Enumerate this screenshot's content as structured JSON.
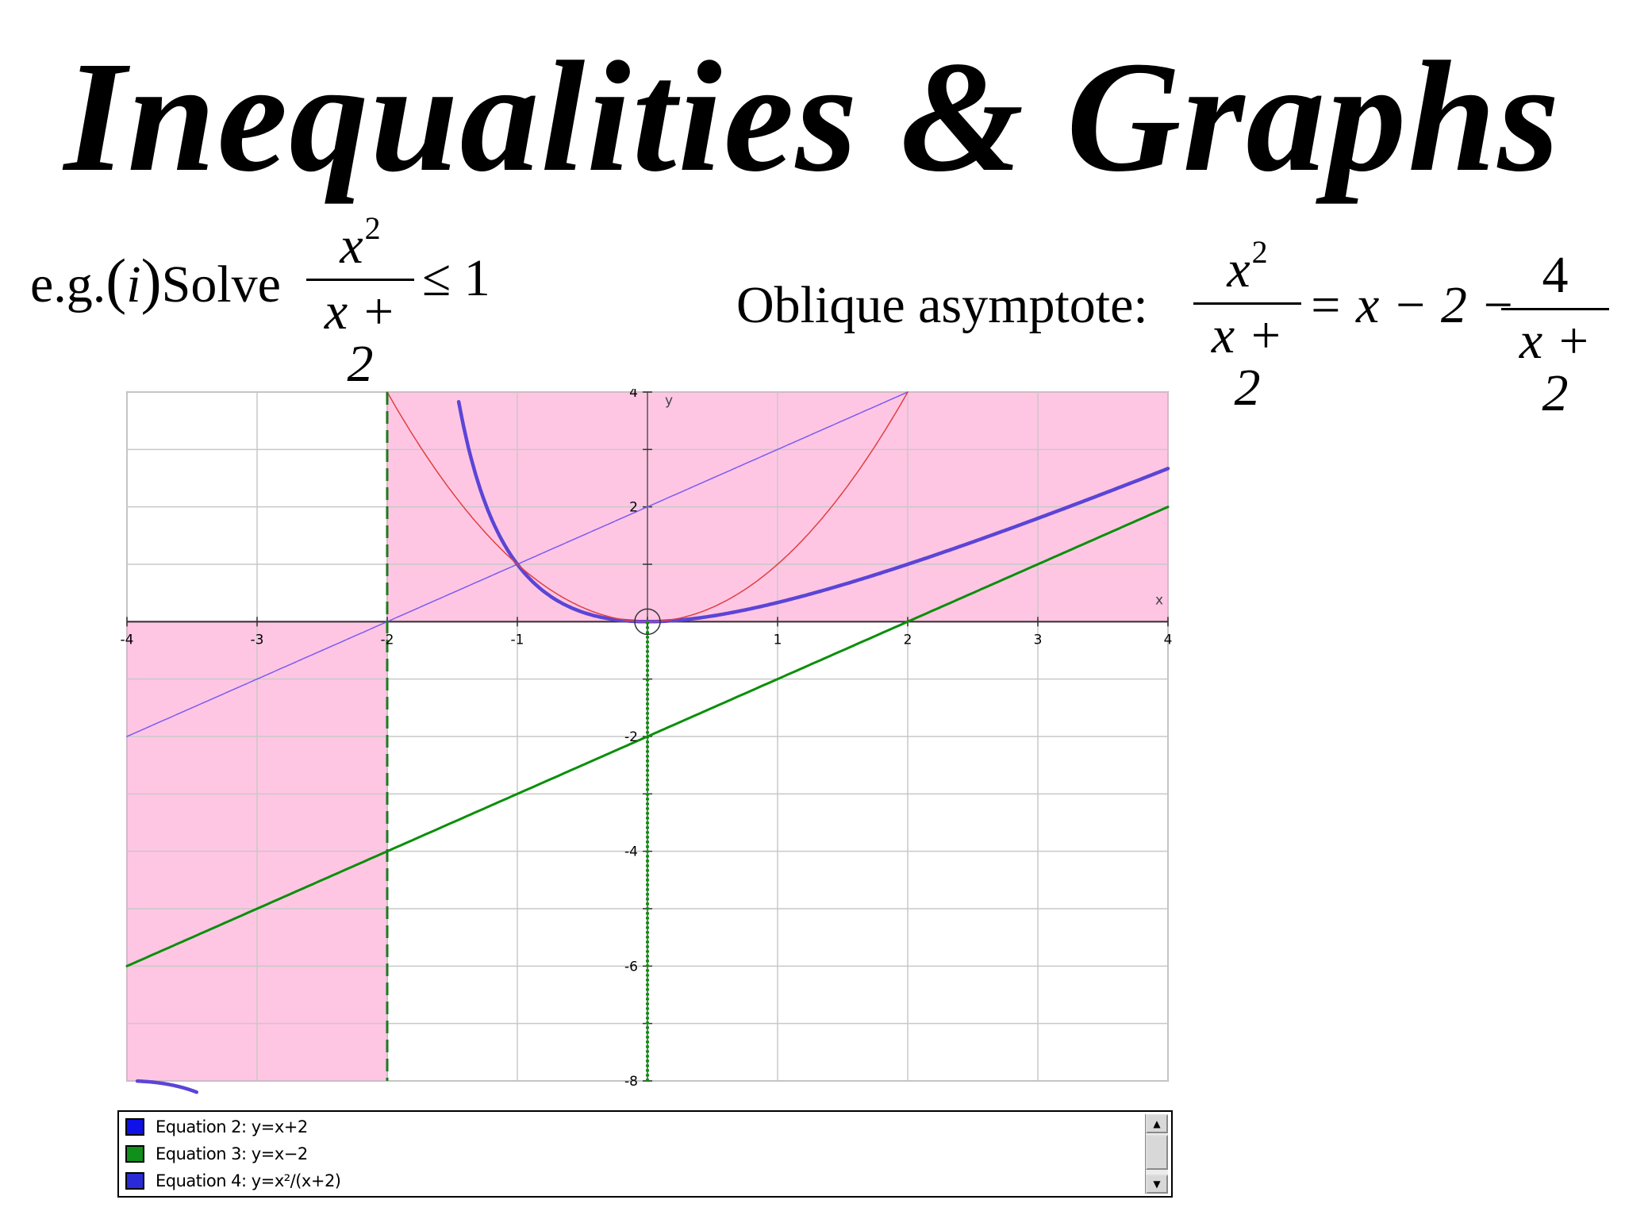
{
  "title": "Inequalities & Graphs",
  "example": {
    "prefix": "e.g.",
    "paren_open": "(",
    "index": "i",
    "paren_close": ")",
    "verb": "Solve",
    "numerator_var": "x",
    "numerator_exp": "2",
    "denominator": "x + 2",
    "relation": "≤ 1"
  },
  "asymptote": {
    "label": "Oblique asymptote:",
    "lhs_num_var": "x",
    "lhs_num_exp": "2",
    "lhs_den": "x + 2",
    "mid": "= x − 2 −",
    "rhs_num": "4",
    "rhs_den": "x + 2"
  },
  "chart_data": {
    "type": "line",
    "xlim": [
      -4,
      4
    ],
    "ylim": [
      -8,
      4
    ],
    "grid": true,
    "x_gridlines": [
      -4,
      -3,
      -2,
      -1,
      0,
      1,
      2,
      3,
      4
    ],
    "y_gridlines": [
      -8,
      -7,
      -6,
      -5,
      -4,
      -3,
      -2,
      -1,
      0,
      1,
      2,
      3,
      4
    ],
    "x_tick_labels": [
      {
        "value": -4,
        "text": "-4"
      },
      {
        "value": -3,
        "text": "-3"
      },
      {
        "value": -2,
        "text": "-2"
      },
      {
        "value": -1,
        "text": "-1"
      },
      {
        "value": 1,
        "text": "1"
      },
      {
        "value": 2,
        "text": "2"
      },
      {
        "value": 3,
        "text": "3"
      },
      {
        "value": 4,
        "text": "4"
      }
    ],
    "y_tick_labels": [
      {
        "value": 4,
        "text": "4"
      },
      {
        "value": 2,
        "text": "2"
      },
      {
        "value": -2,
        "text": "-2"
      },
      {
        "value": -4,
        "text": "-4"
      },
      {
        "value": -6,
        "text": "-6"
      },
      {
        "value": -8,
        "text": "-8"
      }
    ],
    "xlabel": "x",
    "ylabel": "y",
    "shaded_regions": [
      {
        "x": [
          -2,
          4
        ],
        "y": [
          0,
          4
        ]
      },
      {
        "x": [
          -4,
          -2
        ],
        "y": [
          -8,
          0
        ]
      }
    ],
    "series": [
      {
        "name": "Equation 2: y=x+2",
        "expr": "x+2",
        "domain": [
          -4,
          2
        ],
        "color": "#7a5cf0",
        "style": "thin"
      },
      {
        "name": "Equation 3: y=x−2",
        "expr": "x-2",
        "domain": [
          -4,
          4
        ],
        "color": "#0a8f0a",
        "style": "medium"
      },
      {
        "name": "Equation 4: y=x²/(x+2)",
        "expr": "x^2/(x+2)",
        "domain": [
          -3.92,
          -2.35
        ],
        "domain2": [
          -1.6,
          4
        ],
        "color": "#5b45d6",
        "style": "thick"
      },
      {
        "expr": "x^2",
        "domain": [
          -2,
          2
        ],
        "color": "#e04040",
        "style": "thin"
      },
      {
        "expr": "x=-2",
        "color": "#1e7a1e",
        "style": "dashed"
      },
      {
        "expr": "x=0",
        "color": "#0a8f0a",
        "style": "dotted"
      }
    ],
    "marked_point": {
      "x": 0,
      "y": 0
    }
  },
  "legend": {
    "items": [
      {
        "label": "Equation 2: y=x+2",
        "color": "#1010e8"
      },
      {
        "label": "Equation 3: y=x−2",
        "color": "#10901a"
      },
      {
        "label": "Equation 4: y=x²/(x+2)",
        "color": "#2a2ad8"
      }
    ]
  },
  "scroll": {
    "up_glyph": "▲",
    "down_glyph": "▼"
  }
}
